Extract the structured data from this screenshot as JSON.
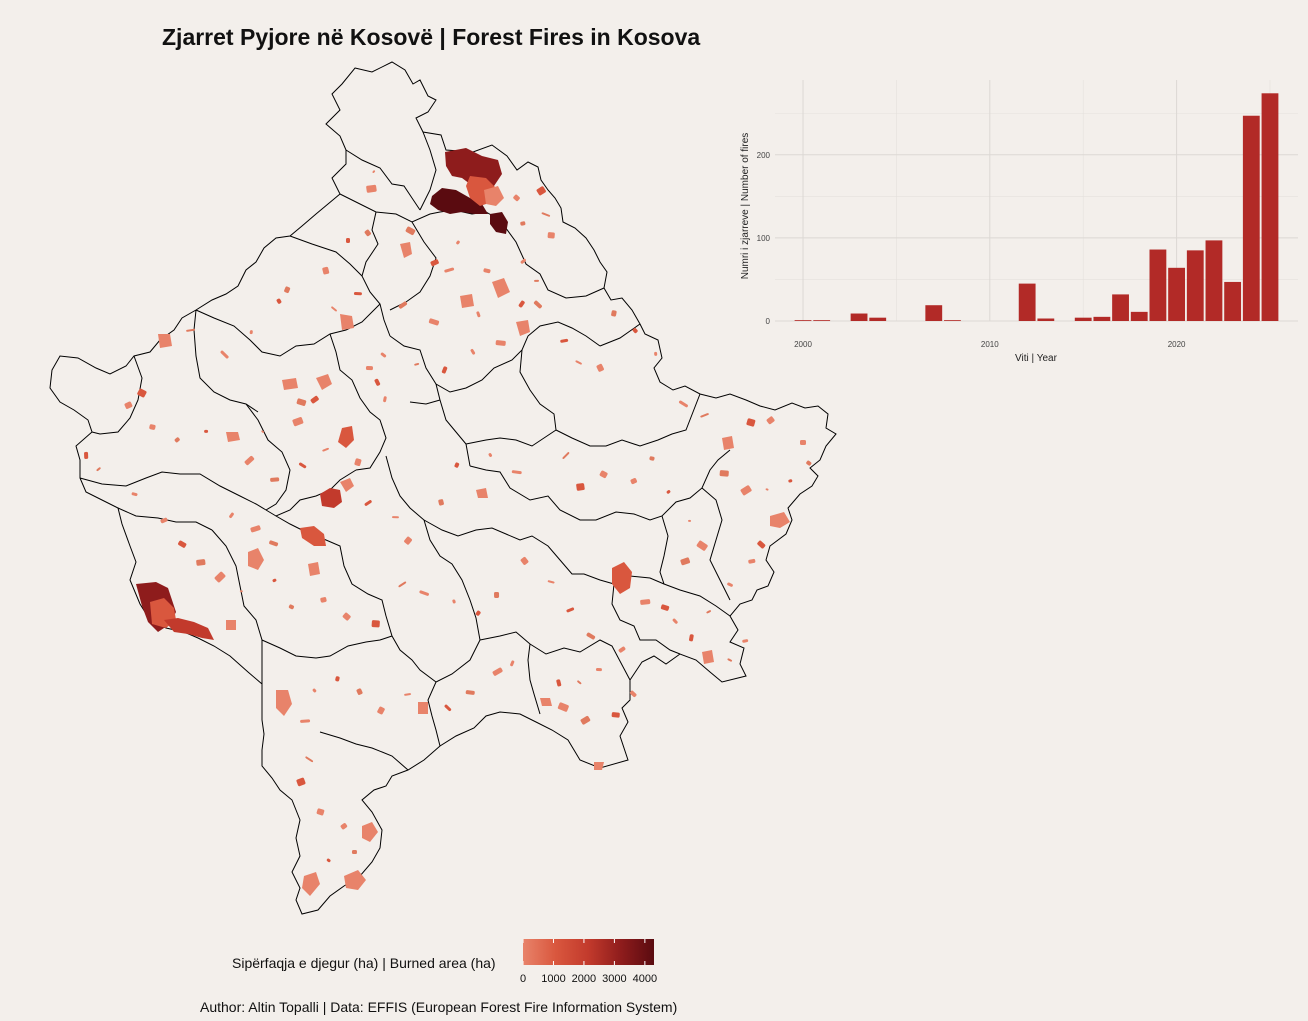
{
  "title": "Zjarret Pyjore në Kosovë | Forest Fires in Kosova",
  "caption": "Author: Altin Topalli | Data: EFFIS (European Forest Fire Information System)",
  "legend": {
    "title": "Sipërfaqja e djegur (ha) | Burned area (ha)",
    "ticks": [
      "0",
      "1000",
      "2000",
      "3000",
      "4000"
    ],
    "range": [
      0,
      4300
    ],
    "colors": [
      "#e8836a",
      "#d9573e",
      "#c23a2c",
      "#8e1c1c",
      "#5a0b10"
    ]
  },
  "map": {
    "background": "#f3efeb",
    "border_color": "#000000",
    "fill_color": "#f3efeb"
  },
  "chart_data": {
    "type": "bar",
    "xlabel": "Viti | Year",
    "ylabel": "Numri i zjarreve | Number of fires",
    "bar_color": "#b22a27",
    "x_ticks": [
      2000,
      2010,
      2020
    ],
    "y_ticks": [
      0,
      100,
      200
    ],
    "ylim": [
      0,
      290
    ],
    "xlim": [
      1998.5,
      2026.5
    ],
    "grid": true,
    "categories": [
      2000,
      2001,
      2003,
      2004,
      2007,
      2008,
      2012,
      2013,
      2015,
      2016,
      2017,
      2018,
      2019,
      2020,
      2021,
      2022,
      2023,
      2024,
      2025
    ],
    "values": [
      1,
      1,
      9,
      4,
      19,
      1,
      45,
      3,
      4,
      5,
      32,
      11,
      86,
      64,
      85,
      97,
      47,
      247,
      274
    ]
  }
}
